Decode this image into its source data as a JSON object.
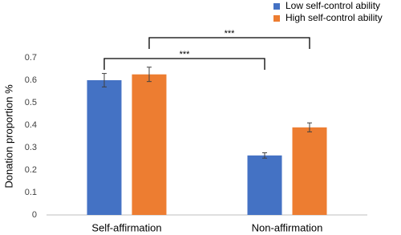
{
  "chart_data": {
    "type": "bar",
    "y_label": "Donation proportion %",
    "categories": [
      "Self-affirmation",
      "Non-affirmation"
    ],
    "series": [
      {
        "name": "Low self-control ability",
        "color": "#4472c4",
        "values": [
          0.6,
          0.265
        ],
        "errors": [
          0.03,
          0.012
        ]
      },
      {
        "name": "High self-control ability",
        "color": "#ed7d31",
        "values": [
          0.626,
          0.39
        ],
        "errors": [
          0.032,
          0.02
        ]
      }
    ],
    "ylim": [
      0,
      0.7
    ],
    "yticks": [
      0,
      0.1,
      0.2,
      0.3,
      0.4,
      0.5,
      0.6,
      0.7
    ],
    "grid": false,
    "legend": "top-right",
    "annotations": [
      {
        "text": "***"
      },
      {
        "text": "***"
      }
    ]
  }
}
